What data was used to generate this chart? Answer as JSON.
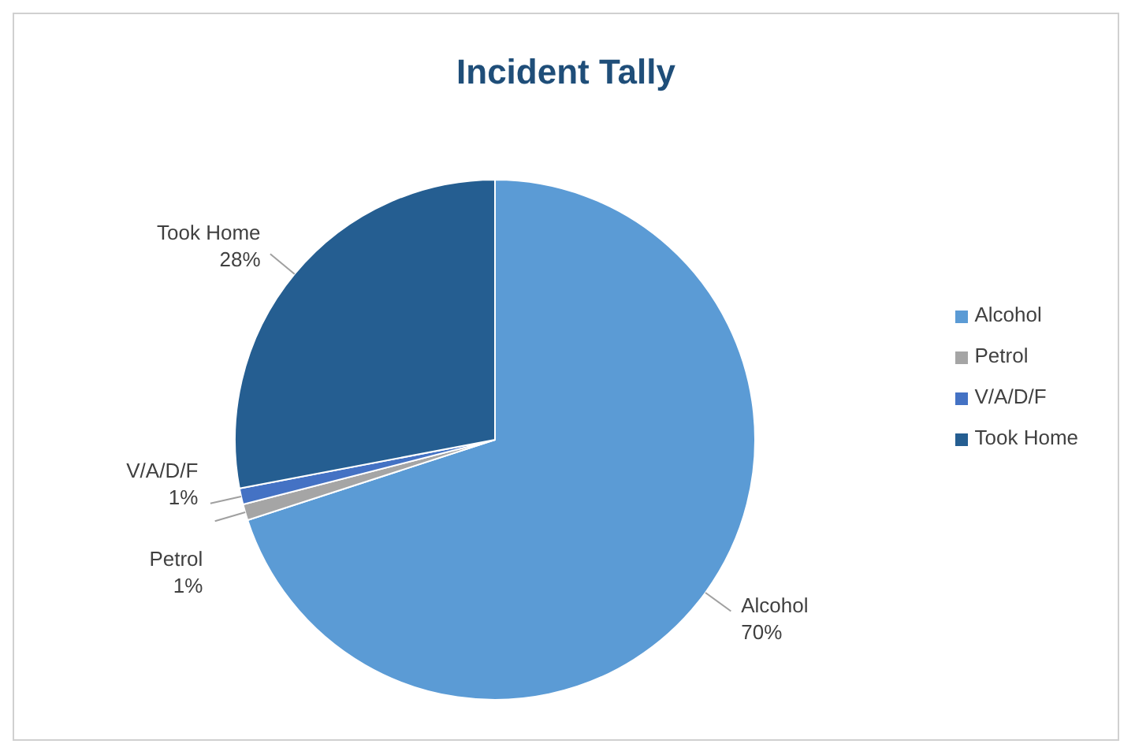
{
  "chart_data": {
    "type": "pie",
    "title": "Incident Tally",
    "categories": [
      "Alcohol",
      "Petrol",
      "V/A/D/F",
      "Took Home"
    ],
    "values": [
      70,
      1,
      1,
      28
    ],
    "colors": [
      "#5b9bd5",
      "#a5a5a5",
      "#4472c4",
      "#255e91"
    ],
    "value_labels": [
      "70%",
      "1%",
      "1%",
      "28%"
    ],
    "legend": "right"
  }
}
